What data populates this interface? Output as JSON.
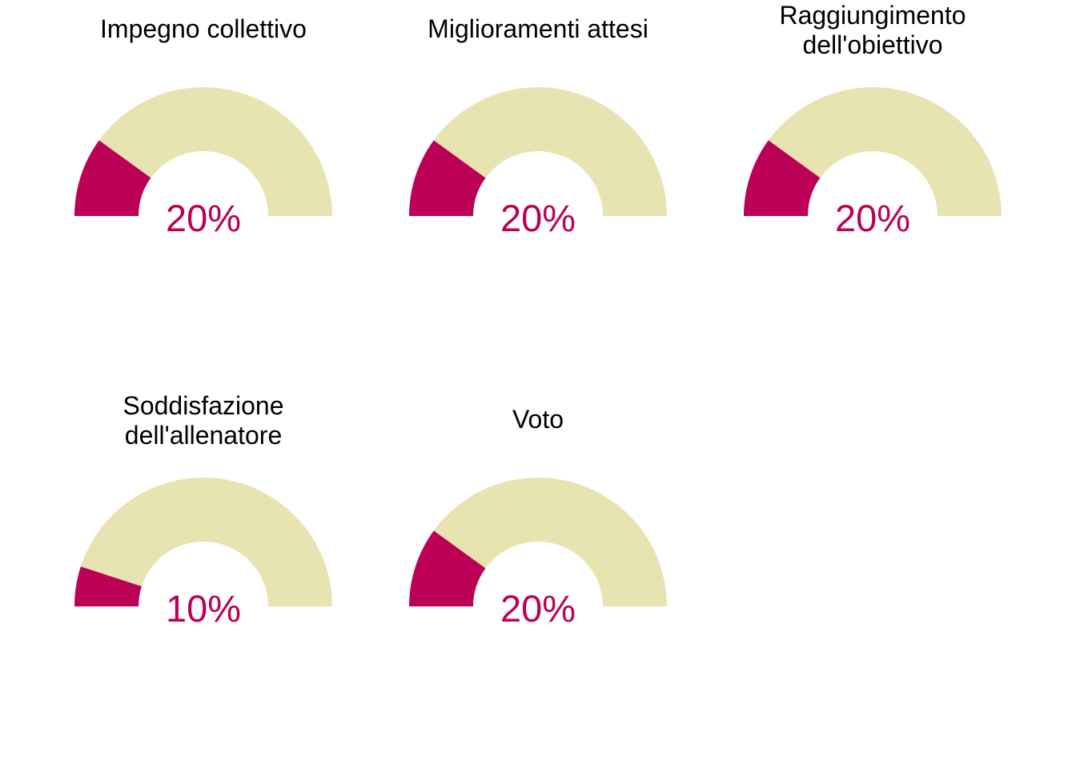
{
  "colors": {
    "filled": "#bb0055",
    "track": "#e8e4b2",
    "label": "#bb0055",
    "title": "#000000"
  },
  "chart_data": [
    {
      "type": "gauge",
      "title_lines": [
        "Impegno collettivo"
      ],
      "value": 20,
      "max": 100,
      "label": "20%"
    },
    {
      "type": "gauge",
      "title_lines": [
        "Miglioramenti attesi"
      ],
      "value": 20,
      "max": 100,
      "label": "20%"
    },
    {
      "type": "gauge",
      "title_lines": [
        "Raggiungimento",
        "dell'obiettivo"
      ],
      "value": 20,
      "max": 100,
      "label": "20%"
    },
    {
      "type": "gauge",
      "title_lines": [
        "Soddisfazione",
        "dell'allenatore"
      ],
      "value": 10,
      "max": 100,
      "label": "10%"
    },
    {
      "type": "gauge",
      "title_lines": [
        "Voto"
      ],
      "value": 20,
      "max": 100,
      "label": "20%"
    }
  ]
}
